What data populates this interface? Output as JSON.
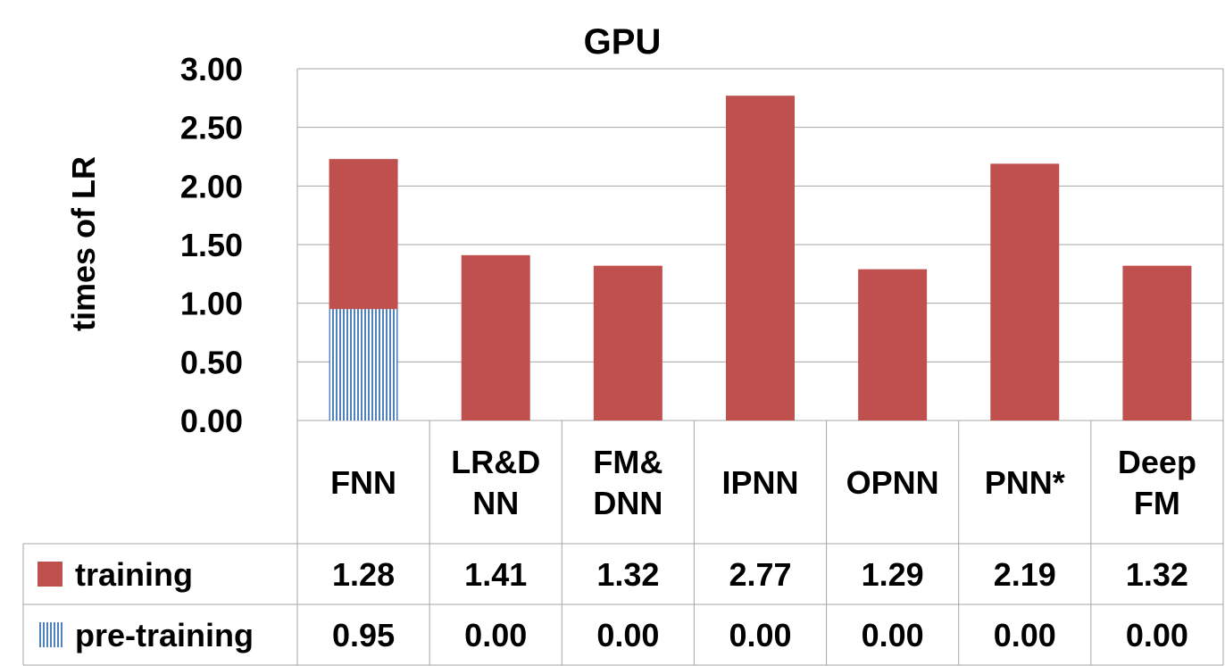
{
  "chart_data": {
    "type": "bar",
    "stacked": true,
    "title": "GPU",
    "xlabel": "",
    "ylabel": "times of LR",
    "ylim": [
      0,
      3
    ],
    "yticks": [
      "0.00",
      "0.50",
      "1.00",
      "1.50",
      "2.00",
      "2.50",
      "3.00"
    ],
    "grid": true,
    "categories": [
      [
        "FNN"
      ],
      [
        "LR&D",
        "NN"
      ],
      [
        "FM&",
        "DNN"
      ],
      [
        "IPNN"
      ],
      [
        "OPNN"
      ],
      [
        "PNN*"
      ],
      [
        "Deep",
        "FM"
      ]
    ],
    "series": [
      {
        "name": "pre-training",
        "color": "#4f81bd",
        "pattern": "vertical-stripes",
        "values": [
          0.95,
          0.0,
          0.0,
          0.0,
          0.0,
          0.0,
          0.0
        ],
        "labels": [
          "0.95",
          "0.00",
          "0.00",
          "0.00",
          "0.00",
          "0.00",
          "0.00"
        ]
      },
      {
        "name": "training",
        "color": "#c0504d",
        "pattern": "solid",
        "values": [
          1.28,
          1.41,
          1.32,
          2.77,
          1.29,
          2.19,
          1.32
        ],
        "labels": [
          "1.28",
          "1.41",
          "1.32",
          "2.77",
          "1.29",
          "2.19",
          "1.32"
        ]
      }
    ],
    "table_row_order": [
      "training",
      "pre-training"
    ]
  }
}
